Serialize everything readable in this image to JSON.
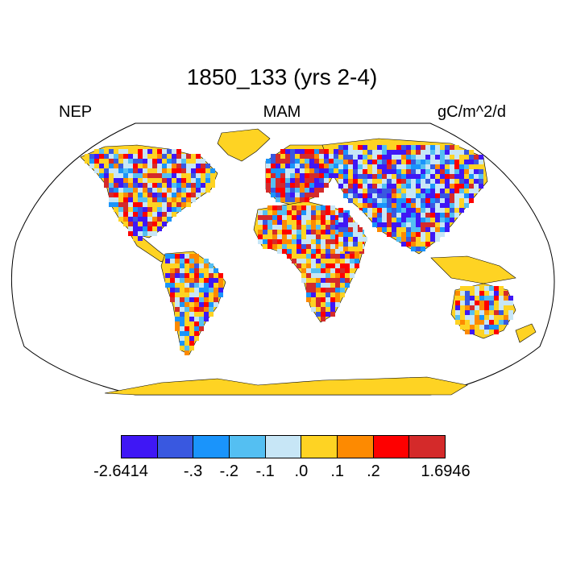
{
  "title": "1850_133 (yrs 2-4)",
  "variable": "NEP",
  "season": "MAM",
  "units": "gC/m^2/d",
  "colorbar": {
    "colors": [
      "#3f17f5",
      "#3958e0",
      "#1a94fb",
      "#54bff2",
      "#c7e6f6",
      "#fed323",
      "#fd8a01",
      "#fe0000",
      "#d42a2a"
    ],
    "labels": [
      "-2.6414",
      "-.3",
      "-.2",
      "-.1",
      ".0",
      ".1",
      ".2",
      "1.6946"
    ],
    "label_boundaries": [
      0,
      2,
      3,
      4,
      5,
      6,
      7,
      9
    ]
  },
  "map": {
    "projection": "Robinson",
    "land_color": "#fed323",
    "ocean_color": "#ffffff"
  }
}
